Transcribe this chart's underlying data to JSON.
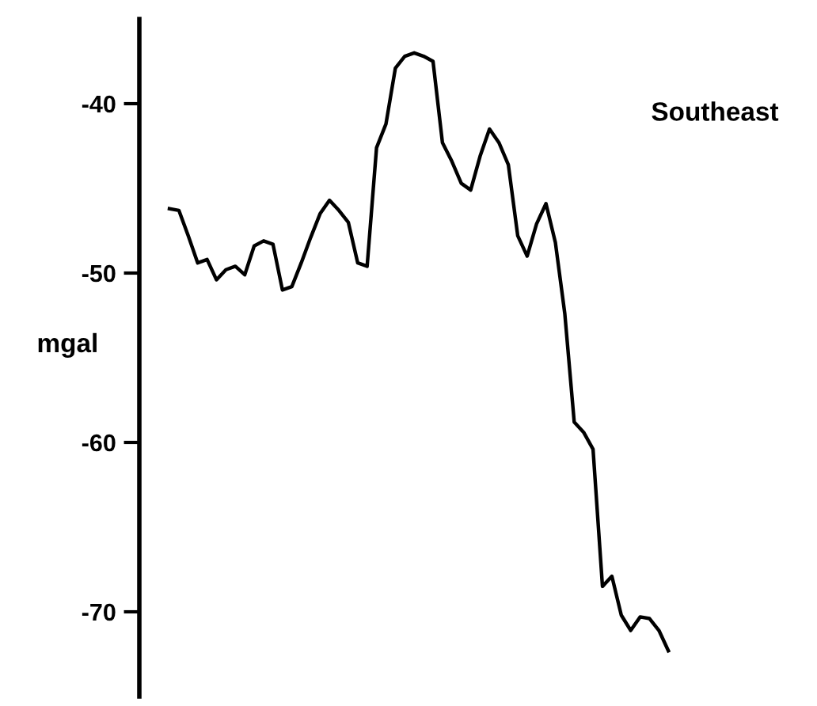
{
  "chart_data": {
    "type": "line",
    "ylabel": "mgal",
    "annotations": [
      "Southeast"
    ],
    "categories": [
      null,
      null,
      null,
      null,
      null,
      null,
      null,
      null,
      null,
      null,
      null,
      null,
      null,
      null,
      null,
      null,
      null,
      null,
      null,
      null,
      null,
      null,
      null,
      null,
      null,
      null,
      null,
      null,
      null,
      null,
      null,
      null,
      null,
      null,
      null,
      null,
      null,
      null,
      null,
      null,
      null,
      null,
      null,
      null,
      null,
      null,
      null,
      null,
      null,
      null,
      null,
      null,
      null,
      null
    ],
    "series": [
      {
        "color": "#000000",
        "values": [
          -46.2,
          -46.3,
          -47.8,
          -49.4,
          -49.2,
          -50.4,
          -49.8,
          -49.6,
          -50.1,
          -48.4,
          -48.1,
          -48.3,
          -51.0,
          -50.8,
          -49.4,
          -47.9,
          -46.5,
          -45.7,
          -46.3,
          -47.0,
          -49.4,
          -49.6,
          -42.6,
          -41.2,
          -37.9,
          -37.2,
          -37.0,
          -37.2,
          -37.5,
          -42.3,
          -43.4,
          -44.7,
          -45.1,
          -43.1,
          -41.5,
          -42.3,
          -43.6,
          -47.8,
          -49.0,
          -47.1,
          -45.9,
          -48.2,
          -52.4,
          -58.8,
          -59.4,
          -60.4,
          -68.5,
          -67.9,
          -70.2,
          -71.1,
          -70.3,
          -70.4,
          -71.1,
          -72.3
        ]
      }
    ],
    "ylim": [
      -75,
      -35
    ],
    "yticks": [
      -40,
      -50,
      -60,
      -70
    ],
    "tick_labels": "y",
    "grid": false,
    "marker": "none",
    "line_style": "solid"
  }
}
